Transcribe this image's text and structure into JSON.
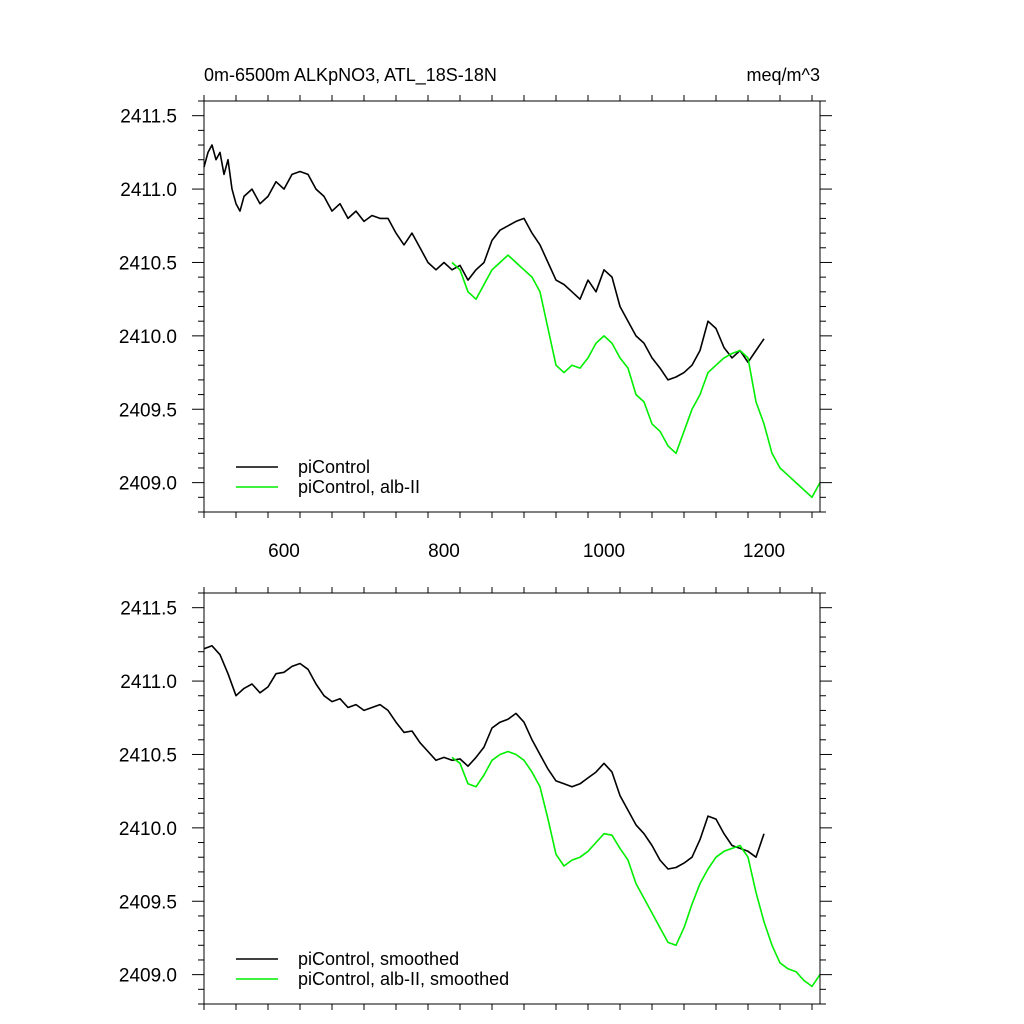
{
  "title_left": "0m-6500m ALKpNO3, ATL_18S-18N",
  "title_right": "meq/m^3",
  "colors": {
    "control": "#000000",
    "alb": "#00ee00"
  },
  "chart_data": [
    {
      "type": "line",
      "xlim": [
        500,
        1270
      ],
      "ylim": [
        2408.8,
        2411.6
      ],
      "xticks": [
        "600",
        "800",
        "1000",
        "1200"
      ],
      "yticks": [
        "2409.0",
        "2409.5",
        "2410.0",
        "2410.5",
        "2411.0",
        "2411.5"
      ],
      "show_x_tick_labels": true,
      "legend_location": "lower-left",
      "series": [
        {
          "name": "piControl",
          "color": "#000000",
          "x": [
            500,
            505,
            510,
            515,
            520,
            525,
            530,
            535,
            540,
            545,
            550,
            560,
            570,
            580,
            590,
            600,
            610,
            620,
            630,
            640,
            650,
            660,
            670,
            680,
            690,
            700,
            710,
            720,
            730,
            740,
            750,
            760,
            770,
            780,
            790,
            800,
            810,
            820,
            830,
            840,
            850,
            860,
            870,
            880,
            890,
            900,
            910,
            920,
            930,
            940,
            950,
            960,
            970,
            980,
            990,
            1000,
            1010,
            1020,
            1030,
            1040,
            1050,
            1060,
            1070,
            1080,
            1090,
            1100,
            1110,
            1120,
            1130,
            1140,
            1150,
            1160,
            1170,
            1180,
            1190,
            1200
          ],
          "y": [
            2411.15,
            2411.25,
            2411.3,
            2411.2,
            2411.25,
            2411.1,
            2411.2,
            2411.0,
            2410.9,
            2410.85,
            2410.95,
            2411.0,
            2410.9,
            2410.95,
            2411.05,
            2411.0,
            2411.1,
            2411.12,
            2411.1,
            2411.0,
            2410.95,
            2410.85,
            2410.9,
            2410.8,
            2410.85,
            2410.78,
            2410.82,
            2410.8,
            2410.8,
            2410.7,
            2410.62,
            2410.7,
            2410.6,
            2410.5,
            2410.45,
            2410.5,
            2410.45,
            2410.48,
            2410.38,
            2410.45,
            2410.5,
            2410.65,
            2410.72,
            2410.75,
            2410.78,
            2410.8,
            2410.7,
            2410.62,
            2410.5,
            2410.38,
            2410.35,
            2410.3,
            2410.25,
            2410.38,
            2410.3,
            2410.45,
            2410.4,
            2410.2,
            2410.1,
            2410.0,
            2409.95,
            2409.85,
            2409.78,
            2409.7,
            2409.72,
            2409.75,
            2409.8,
            2409.9,
            2410.1,
            2410.05,
            2409.92,
            2409.85,
            2409.9,
            2409.82,
            2409.9,
            2409.98
          ]
        },
        {
          "name": "piControl, alb-II",
          "color": "#00ee00",
          "x": [
            810,
            820,
            830,
            840,
            850,
            860,
            870,
            880,
            890,
            900,
            910,
            920,
            930,
            940,
            950,
            960,
            970,
            980,
            990,
            1000,
            1010,
            1020,
            1030,
            1040,
            1050,
            1060,
            1070,
            1080,
            1090,
            1100,
            1110,
            1120,
            1130,
            1140,
            1150,
            1160,
            1170,
            1180,
            1190,
            1200,
            1210,
            1220,
            1230,
            1240,
            1250,
            1260,
            1270
          ],
          "y": [
            2410.5,
            2410.45,
            2410.3,
            2410.25,
            2410.35,
            2410.45,
            2410.5,
            2410.55,
            2410.5,
            2410.45,
            2410.4,
            2410.3,
            2410.05,
            2409.8,
            2409.75,
            2409.8,
            2409.78,
            2409.85,
            2409.95,
            2410.0,
            2409.95,
            2409.85,
            2409.78,
            2409.6,
            2409.55,
            2409.4,
            2409.35,
            2409.25,
            2409.2,
            2409.35,
            2409.5,
            2409.6,
            2409.75,
            2409.8,
            2409.85,
            2409.88,
            2409.9,
            2409.85,
            2409.55,
            2409.4,
            2409.2,
            2409.1,
            2409.05,
            2409.0,
            2408.95,
            2408.9,
            2409.0
          ]
        }
      ]
    },
    {
      "type": "line",
      "xlim": [
        500,
        1270
      ],
      "ylim": [
        2408.8,
        2411.6
      ],
      "xticks": [
        "600",
        "800",
        "1000",
        "1200"
      ],
      "yticks": [
        "2409.0",
        "2409.5",
        "2410.0",
        "2410.5",
        "2411.0",
        "2411.5"
      ],
      "show_x_tick_labels": false,
      "legend_location": "lower-left",
      "series": [
        {
          "name": "piControl, smoothed",
          "color": "#000000",
          "x": [
            500,
            510,
            520,
            530,
            540,
            550,
            560,
            570,
            580,
            590,
            600,
            610,
            620,
            630,
            640,
            650,
            660,
            670,
            680,
            690,
            700,
            710,
            720,
            730,
            740,
            750,
            760,
            770,
            780,
            790,
            800,
            810,
            820,
            830,
            840,
            850,
            860,
            870,
            880,
            890,
            900,
            910,
            920,
            930,
            940,
            950,
            960,
            970,
            980,
            990,
            1000,
            1010,
            1020,
            1030,
            1040,
            1050,
            1060,
            1070,
            1080,
            1090,
            1100,
            1110,
            1120,
            1130,
            1140,
            1150,
            1160,
            1170,
            1180,
            1190,
            1200
          ],
          "y": [
            2411.22,
            2411.24,
            2411.18,
            2411.05,
            2410.9,
            2410.95,
            2410.98,
            2410.92,
            2410.96,
            2411.05,
            2411.06,
            2411.1,
            2411.12,
            2411.08,
            2410.98,
            2410.9,
            2410.86,
            2410.88,
            2410.82,
            2410.84,
            2410.8,
            2410.82,
            2410.84,
            2410.8,
            2410.72,
            2410.65,
            2410.66,
            2410.58,
            2410.52,
            2410.46,
            2410.48,
            2410.46,
            2410.47,
            2410.42,
            2410.48,
            2410.55,
            2410.68,
            2410.72,
            2410.74,
            2410.78,
            2410.72,
            2410.6,
            2410.5,
            2410.4,
            2410.32,
            2410.3,
            2410.28,
            2410.3,
            2410.34,
            2410.38,
            2410.44,
            2410.38,
            2410.22,
            2410.12,
            2410.02,
            2409.96,
            2409.88,
            2409.78,
            2409.72,
            2409.73,
            2409.76,
            2409.8,
            2409.92,
            2410.08,
            2410.06,
            2409.96,
            2409.88,
            2409.86,
            2409.84,
            2409.8,
            2409.96
          ]
        },
        {
          "name": "piControl, alb-II, smoothed",
          "color": "#00ee00",
          "x": [
            810,
            820,
            830,
            840,
            850,
            860,
            870,
            880,
            890,
            900,
            910,
            920,
            930,
            940,
            950,
            960,
            970,
            980,
            990,
            1000,
            1010,
            1020,
            1030,
            1040,
            1050,
            1060,
            1070,
            1080,
            1090,
            1100,
            1110,
            1120,
            1130,
            1140,
            1150,
            1160,
            1170,
            1180,
            1190,
            1200,
            1210,
            1220,
            1230,
            1240,
            1250,
            1260,
            1270
          ],
          "y": [
            2410.48,
            2410.44,
            2410.3,
            2410.28,
            2410.36,
            2410.46,
            2410.5,
            2410.52,
            2410.5,
            2410.46,
            2410.38,
            2410.28,
            2410.06,
            2409.82,
            2409.74,
            2409.78,
            2409.8,
            2409.84,
            2409.9,
            2409.96,
            2409.95,
            2409.86,
            2409.78,
            2409.62,
            2409.52,
            2409.42,
            2409.32,
            2409.22,
            2409.2,
            2409.32,
            2409.48,
            2409.62,
            2409.72,
            2409.8,
            2409.84,
            2409.86,
            2409.88,
            2409.8,
            2409.56,
            2409.36,
            2409.2,
            2409.08,
            2409.04,
            2409.02,
            2408.96,
            2408.92,
            2409.0
          ]
        }
      ]
    }
  ]
}
